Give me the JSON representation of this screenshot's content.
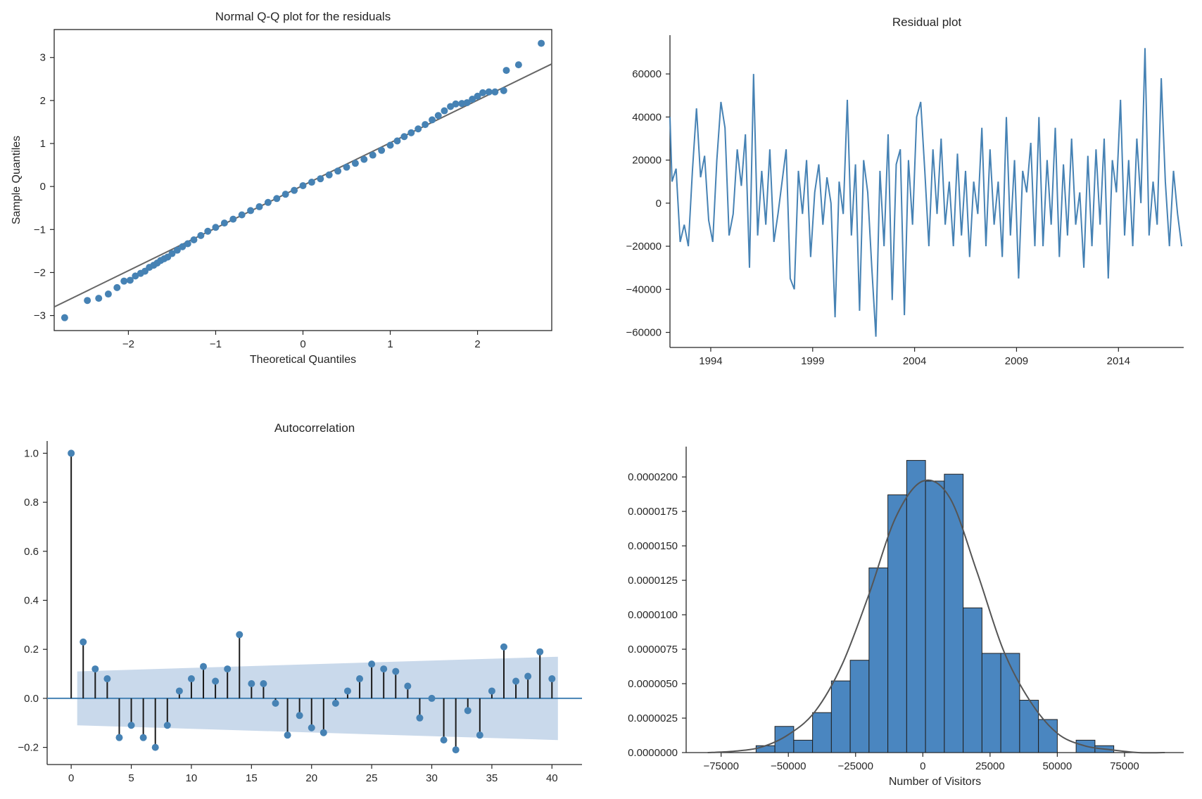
{
  "colors": {
    "point": "#4682b4",
    "line": "#4682b4",
    "ref": "#666666",
    "band": "#c6d7ea",
    "hist": "#4a86c0",
    "kde": "#555555",
    "stem": "#1a1a1a",
    "axis": "#262626"
  },
  "chart_data": [
    {
      "type": "scatter",
      "title": "Normal Q-Q plot for the residuals",
      "xlabel": "Theoretical Quantiles",
      "ylabel": "Sample Quantiles",
      "xlim": [
        -2.85,
        2.85
      ],
      "ylim": [
        -3.35,
        3.65
      ],
      "xticks": [
        -2,
        -1,
        0,
        1,
        2
      ],
      "xtick_labels": [
        "−2",
        "−1",
        "0",
        "1",
        "2"
      ],
      "yticks": [
        -3,
        -2,
        -1,
        0,
        1,
        2,
        3
      ],
      "ytick_labels": [
        "−3",
        "−2",
        "−1",
        "0",
        "1",
        "2",
        "3"
      ],
      "reference_line": [
        [
          -2.85,
          -2.8
        ],
        [
          2.85,
          2.85
        ]
      ],
      "points": [
        [
          -2.73,
          -3.05
        ],
        [
          -2.47,
          -2.65
        ],
        [
          -2.34,
          -2.6
        ],
        [
          -2.23,
          -2.5
        ],
        [
          -2.13,
          -2.35
        ],
        [
          -2.05,
          -2.2
        ],
        [
          -1.98,
          -2.18
        ],
        [
          -1.92,
          -2.08
        ],
        [
          -1.86,
          -2.02
        ],
        [
          -1.81,
          -1.97
        ],
        [
          -1.76,
          -1.88
        ],
        [
          -1.71,
          -1.83
        ],
        [
          -1.67,
          -1.78
        ],
        [
          -1.63,
          -1.72
        ],
        [
          -1.59,
          -1.68
        ],
        [
          -1.55,
          -1.64
        ],
        [
          -1.5,
          -1.56
        ],
        [
          -1.44,
          -1.48
        ],
        [
          -1.38,
          -1.4
        ],
        [
          -1.32,
          -1.33
        ],
        [
          -1.25,
          -1.24
        ],
        [
          -1.17,
          -1.14
        ],
        [
          -1.09,
          -1.04
        ],
        [
          -1.0,
          -0.95
        ],
        [
          -0.9,
          -0.85
        ],
        [
          -0.8,
          -0.76
        ],
        [
          -0.7,
          -0.66
        ],
        [
          -0.6,
          -0.56
        ],
        [
          -0.5,
          -0.47
        ],
        [
          -0.4,
          -0.37
        ],
        [
          -0.3,
          -0.28
        ],
        [
          -0.2,
          -0.18
        ],
        [
          -0.1,
          -0.09
        ],
        [
          0.0,
          0.02
        ],
        [
          0.1,
          0.1
        ],
        [
          0.2,
          0.18
        ],
        [
          0.3,
          0.27
        ],
        [
          0.4,
          0.36
        ],
        [
          0.5,
          0.45
        ],
        [
          0.6,
          0.54
        ],
        [
          0.7,
          0.63
        ],
        [
          0.8,
          0.73
        ],
        [
          0.9,
          0.84
        ],
        [
          1.0,
          0.96
        ],
        [
          1.08,
          1.06
        ],
        [
          1.16,
          1.16
        ],
        [
          1.24,
          1.25
        ],
        [
          1.32,
          1.34
        ],
        [
          1.4,
          1.44
        ],
        [
          1.48,
          1.55
        ],
        [
          1.55,
          1.65
        ],
        [
          1.62,
          1.76
        ],
        [
          1.69,
          1.86
        ],
        [
          1.75,
          1.92
        ],
        [
          1.82,
          1.93
        ],
        [
          1.88,
          1.95
        ],
        [
          1.94,
          2.03
        ],
        [
          2.0,
          2.1
        ],
        [
          2.06,
          2.18
        ],
        [
          2.13,
          2.2
        ],
        [
          2.2,
          2.2
        ],
        [
          2.3,
          2.23
        ],
        [
          2.33,
          2.7
        ],
        [
          2.47,
          2.83
        ],
        [
          2.73,
          3.33
        ]
      ]
    },
    {
      "type": "line",
      "title": "Residual plot",
      "xlim": [
        1992.0,
        2017.2
      ],
      "ylim": [
        -67000,
        78000
      ],
      "xticks": [
        1994,
        1999,
        2004,
        2009,
        2014
      ],
      "xtick_labels": [
        "1994",
        "1999",
        "2004",
        "2009",
        "2014"
      ],
      "yticks": [
        -60000,
        -40000,
        -20000,
        0,
        20000,
        40000,
        60000
      ],
      "ytick_labels": [
        "−60000",
        "−40000",
        "−20000",
        "0",
        "20000",
        "40000",
        "60000"
      ],
      "series": [
        {
          "x": [
            1992.0,
            1992.1,
            1992.3,
            1992.5,
            1992.7,
            1992.9,
            1993.1,
            1993.3,
            1993.5,
            1993.7,
            1993.9,
            1994.1,
            1994.3,
            1994.5,
            1994.7,
            1994.9,
            1995.1,
            1995.3,
            1995.5,
            1995.7,
            1995.9,
            1996.1,
            1996.3,
            1996.5,
            1996.7,
            1996.9,
            1997.1,
            1997.3,
            1997.5,
            1997.7,
            1997.9,
            1998.1,
            1998.3,
            1998.5,
            1998.7,
            1998.9,
            1999.1,
            1999.3,
            1999.5,
            1999.7,
            1999.9,
            2000.1,
            2000.3,
            2000.5,
            2000.7,
            2000.9,
            2001.1,
            2001.3,
            2001.5,
            2001.7,
            2001.9,
            2002.1,
            2002.3,
            2002.5,
            2002.7,
            2002.9,
            2003.1,
            2003.3,
            2003.5,
            2003.7,
            2003.9,
            2004.1,
            2004.3,
            2004.5,
            2004.7,
            2004.9,
            2005.1,
            2005.3,
            2005.5,
            2005.7,
            2005.9,
            2006.1,
            2006.3,
            2006.5,
            2006.7,
            2006.9,
            2007.1,
            2007.3,
            2007.5,
            2007.7,
            2007.9,
            2008.1,
            2008.3,
            2008.5,
            2008.7,
            2008.9,
            2009.1,
            2009.3,
            2009.5,
            2009.7,
            2009.9,
            2010.1,
            2010.3,
            2010.5,
            2010.7,
            2010.9,
            2011.1,
            2011.3,
            2011.5,
            2011.7,
            2011.9,
            2012.1,
            2012.3,
            2012.5,
            2012.7,
            2012.9,
            2013.1,
            2013.3,
            2013.5,
            2013.7,
            2013.9,
            2014.1,
            2014.3,
            2014.5,
            2014.7,
            2014.9,
            2015.1,
            2015.3,
            2015.5,
            2015.7,
            2015.9,
            2016.1,
            2016.3,
            2016.5,
            2016.7,
            2016.9,
            2017.1
          ],
          "values": [
            40000,
            10000,
            16000,
            -18000,
            -10000,
            -20000,
            15000,
            44000,
            12000,
            22000,
            -8000,
            -18000,
            20000,
            47000,
            35000,
            -15000,
            -5000,
            25000,
            8000,
            32000,
            -30000,
            60000,
            -15000,
            15000,
            -10000,
            25000,
            -18000,
            -5000,
            10000,
            25000,
            -35000,
            -40000,
            15000,
            -5000,
            20000,
            -25000,
            5000,
            18000,
            -10000,
            12000,
            0,
            -53000,
            10000,
            -5000,
            48000,
            -15000,
            18000,
            -50000,
            20000,
            5000,
            -30000,
            -62000,
            15000,
            -20000,
            32000,
            -45000,
            18000,
            25000,
            -52000,
            20000,
            -10000,
            40000,
            47000,
            15000,
            -20000,
            25000,
            -5000,
            30000,
            -10000,
            10000,
            -20000,
            23000,
            -15000,
            15000,
            -25000,
            10000,
            -5000,
            35000,
            -20000,
            25000,
            -10000,
            10000,
            -25000,
            40000,
            -15000,
            20000,
            -35000,
            15000,
            5000,
            28000,
            -20000,
            40000,
            -20000,
            20000,
            -10000,
            35000,
            -25000,
            18000,
            -15000,
            30000,
            -10000,
            5000,
            -30000,
            22000,
            -20000,
            25000,
            -10000,
            30000,
            -35000,
            20000,
            5000,
            48000,
            -15000,
            20000,
            -20000,
            30000,
            0,
            72000,
            -15000,
            10000,
            -10000,
            58000,
            10000,
            -20000,
            15000,
            -5000,
            -20000
          ]
        }
      ]
    },
    {
      "type": "bar",
      "title": "Autocorrelation",
      "xlim": [
        -2.0,
        42.5
      ],
      "ylim": [
        -0.27,
        1.05
      ],
      "xticks": [
        0,
        5,
        10,
        15,
        20,
        25,
        30,
        35,
        40
      ],
      "xtick_labels": [
        "0",
        "5",
        "10",
        "15",
        "20",
        "25",
        "30",
        "35",
        "40"
      ],
      "yticks": [
        -0.2,
        0.0,
        0.2,
        0.4,
        0.6,
        0.8,
        1.0
      ],
      "ytick_labels": [
        "−0.2",
        "0.0",
        "0.2",
        "0.4",
        "0.6",
        "0.8",
        "1.0"
      ],
      "lags": [
        0,
        1,
        2,
        3,
        4,
        5,
        6,
        7,
        8,
        9,
        10,
        11,
        12,
        13,
        14,
        15,
        16,
        17,
        18,
        19,
        20,
        21,
        22,
        23,
        24,
        25,
        26,
        27,
        28,
        29,
        30,
        31,
        32,
        33,
        34,
        35,
        36,
        37,
        38,
        39,
        40
      ],
      "values": [
        1.0,
        0.23,
        0.12,
        0.08,
        -0.16,
        -0.11,
        -0.16,
        -0.2,
        -0.11,
        0.03,
        0.08,
        0.13,
        0.07,
        0.12,
        0.26,
        0.06,
        0.06,
        -0.02,
        -0.15,
        -0.07,
        -0.12,
        -0.14,
        -0.02,
        0.03,
        0.08,
        0.14,
        0.12,
        0.11,
        0.05,
        -0.08,
        0.0,
        -0.17,
        -0.21,
        -0.05,
        -0.15,
        0.03,
        0.21,
        0.07,
        0.09,
        0.19,
        0.08
      ],
      "confidence_band": {
        "x": [
          0.5,
          40.5
        ],
        "upper": [
          0.11,
          0.17
        ],
        "lower": [
          -0.11,
          -0.17
        ]
      }
    },
    {
      "type": "bar",
      "xlabel": "Number of Visitors",
      "xlim": [
        -88000,
        97000
      ],
      "ylim": [
        0,
        2.22e-05
      ],
      "xticks": [
        -75000,
        -50000,
        -25000,
        0,
        25000,
        50000,
        75000
      ],
      "xtick_labels": [
        "−75000",
        "−50000",
        "−25000",
        "0",
        "25000",
        "50000",
        "75000"
      ],
      "yticks": [
        0,
        2.5e-06,
        5e-06,
        7.5e-06,
        1e-05,
        1.25e-05,
        1.5e-05,
        1.75e-05,
        2e-05
      ],
      "ytick_labels": [
        "0.0000000",
        "0.0000025",
        "0.0000050",
        "0.0000075",
        "0.0000100",
        "0.0000125",
        "0.0000150",
        "0.0000175",
        "0.0000200"
      ],
      "bin_edges": [
        -62000,
        -55000,
        -48000,
        -41000,
        -34000,
        -27000,
        -20000,
        -13000,
        -6000,
        1000,
        8000,
        15000,
        22000,
        29000,
        36000,
        43000,
        50000,
        57000,
        64000,
        71000
      ],
      "values": [
        5e-07,
        1.9e-06,
        9e-07,
        2.9e-06,
        5.2e-06,
        6.7e-06,
        1.34e-05,
        1.87e-05,
        2.12e-05,
        1.97e-05,
        2.02e-05,
        1.05e-05,
        7.2e-06,
        7.2e-06,
        3.8e-06,
        2.4e-06,
        0.0,
        9e-07,
        5e-07
      ],
      "kde": {
        "x": [
          -80000,
          -70000,
          -60000,
          -50000,
          -40000,
          -30000,
          -20000,
          -10000,
          0,
          10000,
          20000,
          30000,
          40000,
          50000,
          60000,
          70000,
          80000,
          90000
        ],
        "y": [
          0.0,
          1e-07,
          4e-07,
          1.3e-06,
          3e-06,
          6.4e-06,
          1.15e-05,
          1.71e-05,
          1.97e-05,
          1.85e-05,
          1.32e-05,
          7.4e-06,
          3.7e-06,
          1.4e-06,
          5e-07,
          2e-07,
          0.0,
          0.0
        ]
      }
    }
  ]
}
